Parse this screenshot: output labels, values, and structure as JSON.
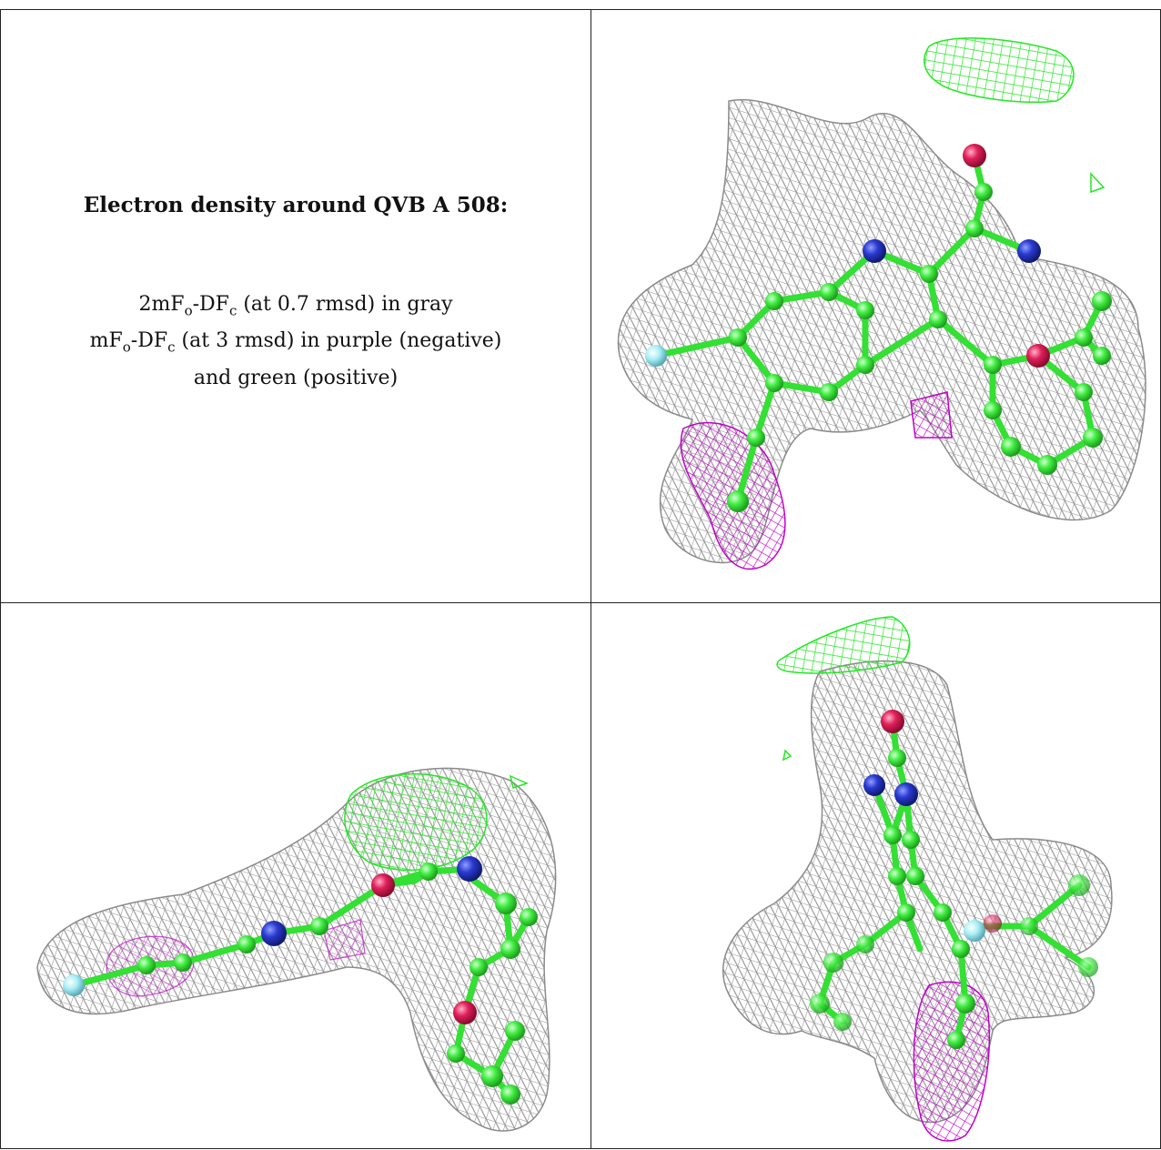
{
  "caption": {
    "title": "Electron density around QVB A 508:",
    "line1": {
      "a": "2mF",
      "a_sub": "o",
      "b": "-DF",
      "b_sub": "c",
      "rest": " (at 0.7 rmsd) in gray"
    },
    "line2": {
      "a": "mF",
      "a_sub": "o",
      "b": "-DF",
      "b_sub": "c",
      "rest": " (at 3 rmsd) in purple (negative)"
    },
    "line3": "and green (positive)"
  },
  "colors": {
    "mesh_gray": "#9a9a9a",
    "mesh_purple": "#c000c8",
    "mesh_green": "#33ee33",
    "carbon": "#44ee44",
    "nitrogen": "#2030c0",
    "oxygen": "#e0205a",
    "fluorine": "#a8eef5",
    "border": "#222222"
  },
  "panels": [
    {
      "name": "view-top-right",
      "label": ""
    },
    {
      "name": "view-bottom-left",
      "label": ""
    },
    {
      "name": "view-bottom-right",
      "label": ""
    }
  ]
}
